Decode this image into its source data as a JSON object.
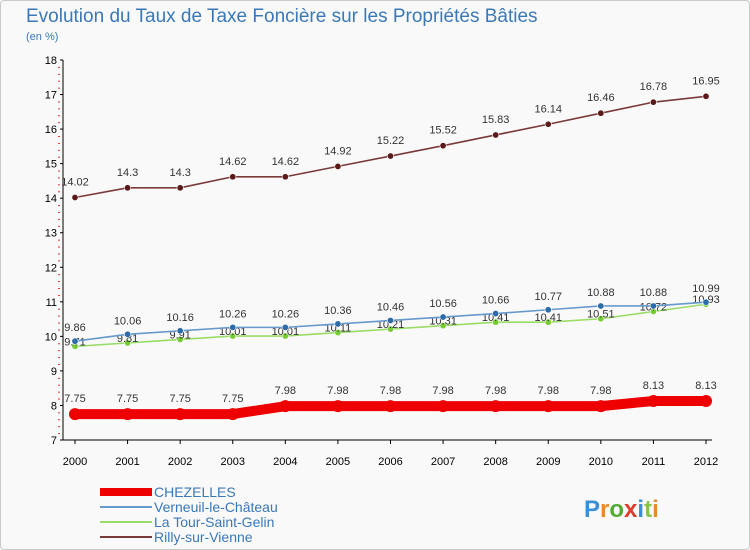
{
  "chart_data": {
    "type": "line",
    "title": "Evolution du Taux de Taxe Foncière sur les Propriétés Bâties",
    "subtitle": "(en %)",
    "x": [
      "2000",
      "2001",
      "2002",
      "2003",
      "2004",
      "2005",
      "2006",
      "2007",
      "2008",
      "2009",
      "2010",
      "2011",
      "2012"
    ],
    "ylim": [
      7,
      18
    ],
    "yticks": [
      "7",
      "8",
      "9",
      "10",
      "11",
      "12",
      "13",
      "14",
      "15",
      "16",
      "17",
      "18"
    ],
    "grid": false,
    "legend_position": "bottom-left",
    "series": [
      {
        "name": "CHEZELLES",
        "color": "#ee0000",
        "values": [
          7.75,
          7.75,
          7.75,
          7.75,
          7.98,
          7.98,
          7.98,
          7.98,
          7.98,
          7.98,
          7.98,
          8.13,
          8.13
        ],
        "labels": [
          "7.75",
          "7.75",
          "7.75",
          "7.75",
          "7.98",
          "7.98",
          "7.98",
          "7.98",
          "7.98",
          "7.98",
          "7.98",
          "8.13",
          "8.13"
        ]
      },
      {
        "name": "Verneuil-le-Château",
        "color": "#6699cc",
        "marker_color": "#2c6aa8",
        "values": [
          9.86,
          10.06,
          10.16,
          10.26,
          10.26,
          10.36,
          10.46,
          10.56,
          10.66,
          10.77,
          10.88,
          10.88,
          10.99
        ],
        "labels": [
          "9.86",
          "10.06",
          "10.16",
          "10.26",
          "10.26",
          "10.36",
          "10.46",
          "10.56",
          "10.66",
          "10.77",
          "10.88",
          "10.88",
          "10.99"
        ]
      },
      {
        "name": "La Tour-Saint-Gelin",
        "color": "#99dd66",
        "marker_color": "#77cc33",
        "values": [
          9.71,
          9.81,
          9.91,
          10.01,
          10.01,
          10.11,
          10.21,
          10.31,
          10.41,
          10.41,
          10.51,
          10.72,
          10.93
        ],
        "labels": [
          "9.71",
          "9.81",
          "9.91",
          "10.01",
          "10.01",
          "10.11",
          "10.21",
          "10.31",
          "10.41",
          "10.41",
          "10.51",
          "10.72",
          "10.93"
        ]
      },
      {
        "name": "Rilly-sur-Vienne",
        "color": "#7a3a3a",
        "marker_color": "#5a1a1a",
        "values": [
          14.02,
          14.3,
          14.3,
          14.62,
          14.62,
          14.92,
          15.22,
          15.52,
          15.83,
          16.14,
          16.46,
          16.78,
          16.95
        ],
        "labels": [
          "14.02",
          "14.3",
          "14.3",
          "14.62",
          "14.62",
          "14.92",
          "15.22",
          "15.52",
          "15.83",
          "16.14",
          "16.46",
          "16.78",
          "16.95"
        ]
      }
    ]
  },
  "logo": {
    "text": "Proxiti",
    "colors": [
      "#3b8fd6",
      "#e8892a",
      "#55aa33",
      "#e03a2a",
      "#3b8fd6",
      "#8bc34a",
      "#e8892a"
    ]
  }
}
